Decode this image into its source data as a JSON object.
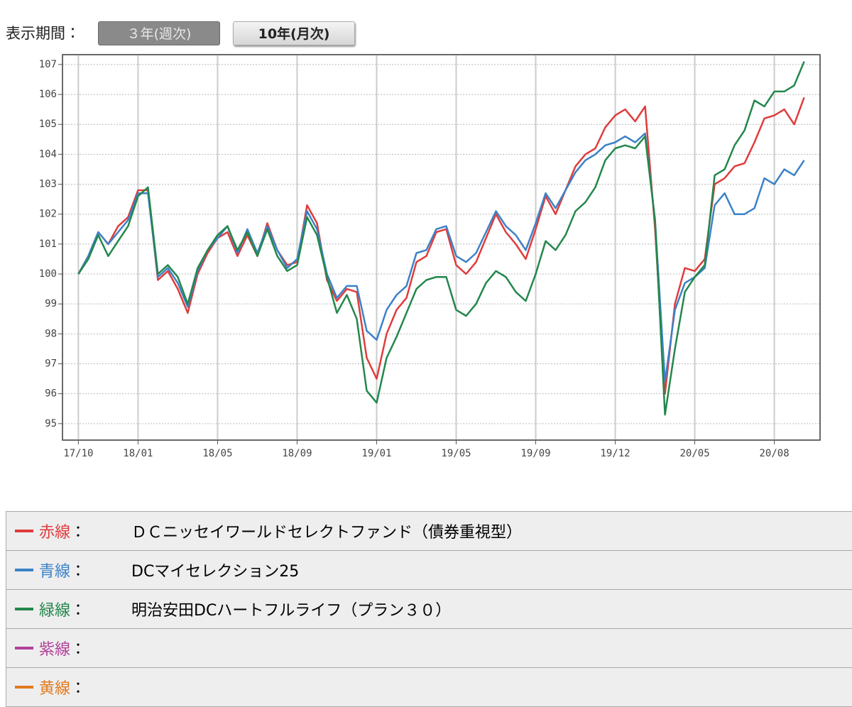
{
  "period_label": "表示期間：",
  "buttons": [
    "３年(週次)",
    "10年(月次)"
  ],
  "legend": {
    "labels": [
      "赤線",
      "青線",
      "緑線",
      "紫線",
      "黄線"
    ],
    "separator": "：",
    "extra_colors": [
      "#b0409a",
      "#e07a20"
    ]
  },
  "chart_data": {
    "type": "line",
    "xlim": [
      -1.6,
      74.6
    ],
    "xticks": [
      {
        "value": 0,
        "label": "17/10"
      },
      {
        "value": 6,
        "label": "18/01"
      },
      {
        "value": 14,
        "label": "18/05"
      },
      {
        "value": 22,
        "label": "18/09"
      },
      {
        "value": 30,
        "label": "19/01"
      },
      {
        "value": 38,
        "label": "19/05"
      },
      {
        "value": 46,
        "label": "19/09"
      },
      {
        "value": 54,
        "label": "19/12"
      },
      {
        "value": 62,
        "label": "20/05"
      },
      {
        "value": 70,
        "label": "20/08"
      }
    ],
    "ylim": [
      94.45,
      107.33
    ],
    "yticks": [
      95,
      96,
      97,
      98,
      99,
      100,
      101,
      102,
      103,
      104,
      105,
      106,
      107
    ],
    "grid": true,
    "series": [
      {
        "name": "ＤＣニッセイワールドセレクトファンド（債券重視型）",
        "color": "#e03c3c",
        "values": [
          100.0,
          100.6,
          101.4,
          101.0,
          101.6,
          101.9,
          102.8,
          102.8,
          99.8,
          100.1,
          99.5,
          98.7,
          100.0,
          100.7,
          101.2,
          101.4,
          100.6,
          101.3,
          100.6,
          101.7,
          100.8,
          100.3,
          100.4,
          102.3,
          101.7,
          99.8,
          99.1,
          99.5,
          99.4,
          97.2,
          96.5,
          98.0,
          98.8,
          99.2,
          100.4,
          100.6,
          101.4,
          101.5,
          100.3,
          100.0,
          100.4,
          101.2,
          102.0,
          101.4,
          101.0,
          100.5,
          101.5,
          102.6,
          102.0,
          102.8,
          103.6,
          104.0,
          104.2,
          104.9,
          105.3,
          105.5,
          105.1,
          105.6,
          101.5,
          96.0,
          99.0,
          100.2,
          100.1,
          100.5,
          103.0,
          103.2,
          103.6,
          103.7,
          104.4,
          105.2,
          105.3,
          105.5,
          105.0,
          105.9
        ]
      },
      {
        "name": "DCマイセレクション25",
        "color": "#3c82c8",
        "values": [
          100.0,
          100.6,
          101.4,
          101.0,
          101.4,
          101.8,
          102.7,
          102.7,
          99.9,
          100.2,
          99.7,
          98.9,
          100.1,
          100.8,
          101.2,
          101.6,
          100.7,
          101.5,
          100.7,
          101.6,
          100.8,
          100.2,
          100.5,
          102.1,
          101.5,
          100.0,
          99.2,
          99.6,
          99.6,
          98.1,
          97.8,
          98.8,
          99.3,
          99.6,
          100.7,
          100.8,
          101.5,
          101.6,
          100.6,
          100.4,
          100.7,
          101.4,
          102.1,
          101.6,
          101.3,
          100.8,
          101.7,
          102.7,
          102.2,
          102.8,
          103.4,
          103.8,
          104.0,
          104.3,
          104.4,
          104.6,
          104.4,
          104.7,
          101.8,
          96.4,
          98.8,
          99.7,
          99.9,
          100.2,
          102.3,
          102.7,
          102.0,
          102.0,
          102.2,
          103.2,
          103.0,
          103.5,
          103.3,
          103.8
        ]
      },
      {
        "name": "明治安田DCハートフルライフ（プラン３０）",
        "color": "#23874c",
        "values": [
          100.0,
          100.5,
          101.3,
          100.6,
          101.1,
          101.6,
          102.6,
          102.9,
          100.0,
          100.3,
          99.9,
          99.0,
          100.2,
          100.8,
          101.3,
          101.6,
          100.8,
          101.4,
          100.6,
          101.5,
          100.6,
          100.1,
          100.3,
          101.9,
          101.3,
          99.9,
          98.7,
          99.3,
          98.5,
          96.1,
          95.7,
          97.2,
          97.9,
          98.7,
          99.5,
          99.8,
          99.9,
          99.9,
          98.8,
          98.6,
          99.0,
          99.7,
          100.1,
          99.9,
          99.4,
          99.1,
          100.0,
          101.1,
          100.8,
          101.3,
          102.1,
          102.4,
          102.9,
          103.8,
          104.2,
          104.3,
          104.2,
          104.6,
          101.8,
          95.3,
          97.5,
          99.4,
          99.9,
          100.3,
          103.3,
          103.5,
          104.3,
          104.8,
          105.8,
          105.6,
          106.1,
          106.1,
          106.3,
          107.1
        ]
      }
    ]
  }
}
